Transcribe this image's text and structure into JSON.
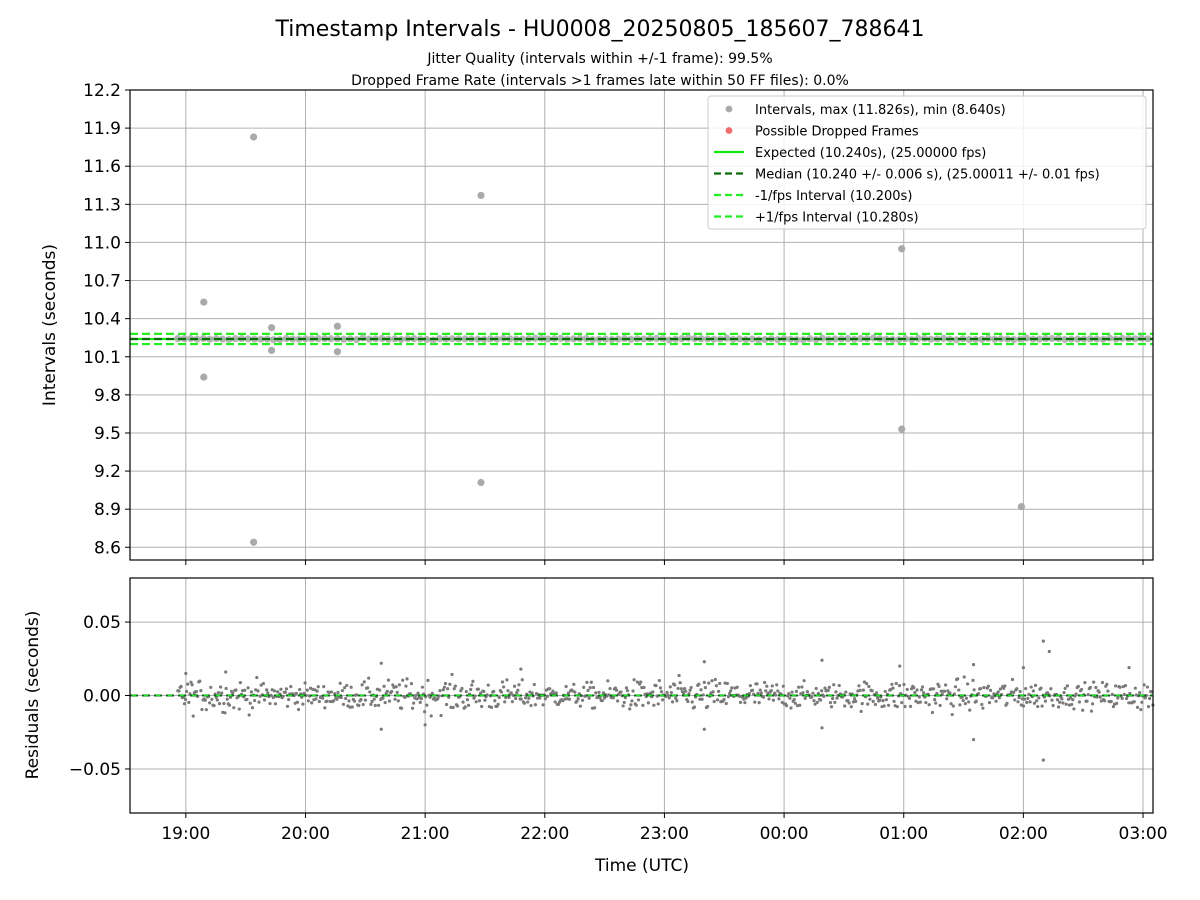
{
  "chart_data": [
    {
      "type": "scatter",
      "title": "Timestamp Intervals - HU0008_20250805_185607_788641",
      "subtitle_lines": [
        "Jitter Quality (intervals within +/-1 frame): 99.5%",
        "Dropped Frame Rate (intervals >1 frames late within 50 FF files): 0.0%"
      ],
      "ylabel": "Intervals (seconds)",
      "ylim": [
        8.5,
        12.2
      ],
      "yticks": [
        "12.2",
        "11.9",
        "11.6",
        "11.3",
        "11.0",
        "10.7",
        "10.4",
        "10.1",
        "9.8",
        "9.5",
        "9.2",
        "8.9",
        "8.6"
      ],
      "grid": true,
      "legend_position": "top-right",
      "legend": [
        "Intervals, max (11.826s), min (8.640s)",
        "Possible Dropped Frames",
        "Expected (10.240s), (25.00000 fps)",
        "Median (10.240 +/- 0.006 s), (25.00011 +/- 0.01 fps)",
        "-1/fps Interval (10.200s)",
        "+1/fps Interval (10.280s)"
      ],
      "expected": 10.24,
      "median": 10.24,
      "minus_interval": 10.2,
      "plus_interval": 10.28,
      "outliers": [
        {
          "x": "19:09",
          "y": 10.53
        },
        {
          "x": "19:09",
          "y": 9.94
        },
        {
          "x": "19:34",
          "y": 11.83
        },
        {
          "x": "19:34",
          "y": 8.64
        },
        {
          "x": "19:43",
          "y": 10.33
        },
        {
          "x": "19:43",
          "y": 10.15
        },
        {
          "x": "20:16",
          "y": 10.34
        },
        {
          "x": "20:16",
          "y": 10.14
        },
        {
          "x": "21:28",
          "y": 11.37
        },
        {
          "x": "21:28",
          "y": 9.11
        },
        {
          "x": "00:59",
          "y": 10.95
        },
        {
          "x": "00:59",
          "y": 9.53
        },
        {
          "x": "01:59",
          "y": 8.92
        }
      ],
      "band_x_range": [
        "18:56",
        "03:05"
      ]
    },
    {
      "type": "scatter",
      "ylabel": "Residuals (seconds)",
      "xlabel": "Time (UTC)",
      "ylim": [
        -0.08,
        0.08
      ],
      "yticks": [
        "0.05",
        "0.00",
        "−0.05"
      ],
      "xticks": [
        "19:00",
        "20:00",
        "21:00",
        "22:00",
        "23:00",
        "00:00",
        "01:00",
        "02:00",
        "03:00"
      ],
      "xlim": [
        "18:32",
        "03:05"
      ],
      "grid": true,
      "zero_line": 0.0,
      "residual_spread": 0.01,
      "residual_extremes": [
        {
          "x": "19:00",
          "y": 0.015
        },
        {
          "x": "19:20",
          "y": 0.016
        },
        {
          "x": "20:38",
          "y": 0.022
        },
        {
          "x": "20:38",
          "y": -0.023
        },
        {
          "x": "21:00",
          "y": -0.02
        },
        {
          "x": "21:48",
          "y": 0.018
        },
        {
          "x": "23:20",
          "y": 0.023
        },
        {
          "x": "23:20",
          "y": -0.023
        },
        {
          "x": "00:19",
          "y": 0.024
        },
        {
          "x": "00:19",
          "y": -0.022
        },
        {
          "x": "00:58",
          "y": 0.02
        },
        {
          "x": "01:35",
          "y": 0.021
        },
        {
          "x": "01:35",
          "y": -0.03
        },
        {
          "x": "02:00",
          "y": 0.019
        },
        {
          "x": "02:10",
          "y": 0.037
        },
        {
          "x": "02:10",
          "y": -0.044
        },
        {
          "x": "02:13",
          "y": 0.03
        },
        {
          "x": "02:53",
          "y": 0.019
        }
      ]
    }
  ],
  "colors": {
    "points": "#7a7a7a",
    "outlier_points": "#aaaaaa",
    "dropped": "#f26c6c",
    "expected": "#14e614",
    "median": "#0a6b0a",
    "bound": "#22ee22",
    "grid": "#b0b0b0"
  }
}
